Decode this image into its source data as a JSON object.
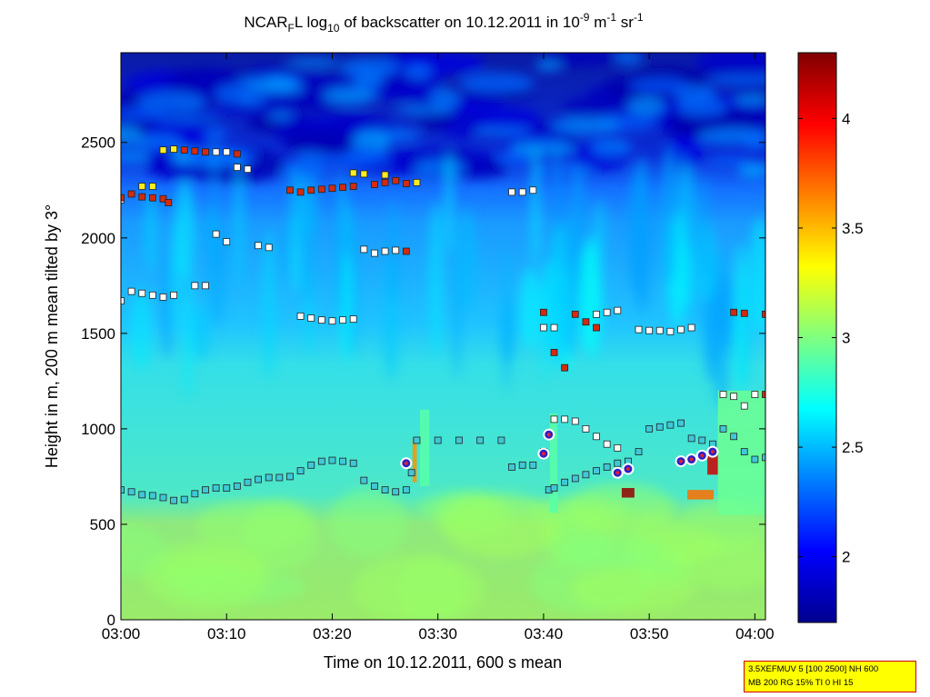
{
  "chart_data": {
    "type": "heatmap",
    "title": {
      "prefix": "NCAR",
      "prefix_sub": "F",
      "mid": "L log",
      "mid_sub": "10",
      "rest": " of backscatter on 10.12.2011 in 10",
      "exp1": "-9",
      "unit1": " m",
      "exp2": "-1",
      "unit2": " sr",
      "exp3": "-1"
    },
    "xlabel": "Time on 10.12.2011, 600 s mean",
    "ylabel": "Height in m, 200 m mean tilted by 3°",
    "xlim_minutes": [
      0,
      61
    ],
    "xticks": [
      {
        "minute": 0,
        "label": "03:00"
      },
      {
        "minute": 10,
        "label": "03:10"
      },
      {
        "minute": 20,
        "label": "03:20"
      },
      {
        "minute": 30,
        "label": "03:30"
      },
      {
        "minute": 40,
        "label": "03:40"
      },
      {
        "minute": 50,
        "label": "03:50"
      },
      {
        "minute": 60,
        "label": "04:00"
      }
    ],
    "ylim": [
      0,
      2970
    ],
    "yticks": [
      {
        "value": 0,
        "label": "0"
      },
      {
        "value": 500,
        "label": "500"
      },
      {
        "value": 1000,
        "label": "1000"
      },
      {
        "value": 1500,
        "label": "1500"
      },
      {
        "value": 2000,
        "label": "2000"
      },
      {
        "value": 2500,
        "label": "2500"
      }
    ],
    "colorbar": {
      "range": [
        1.7,
        4.3
      ],
      "ticks": [
        {
          "value": 2,
          "label": "2"
        },
        {
          "value": 2.5,
          "label": "2.5"
        },
        {
          "value": 3,
          "label": "3"
        },
        {
          "value": 3.5,
          "label": "3.5"
        },
        {
          "value": 4,
          "label": "4"
        }
      ],
      "colormap": "jet"
    },
    "layers": [
      {
        "name": "surface",
        "from": 0,
        "to": 600,
        "value": 2.95
      },
      {
        "name": "mixed",
        "from": 600,
        "to": 1500,
        "value": 2.8
      },
      {
        "name": "upper",
        "from": 1500,
        "to": 2200,
        "value": 2.55
      },
      {
        "name": "clean",
        "from": 2200,
        "to": 2970,
        "value": 1.95
      }
    ],
    "markers": {
      "lower_layer": {
        "color": "#40c8d8",
        "points": [
          [
            0,
            680
          ],
          [
            1,
            670
          ],
          [
            2,
            655
          ],
          [
            3,
            650
          ],
          [
            4,
            640
          ],
          [
            5,
            625
          ],
          [
            6,
            630
          ],
          [
            7,
            660
          ],
          [
            8,
            680
          ],
          [
            9,
            690
          ],
          [
            10,
            690
          ],
          [
            11,
            700
          ],
          [
            12,
            720
          ],
          [
            13,
            735
          ],
          [
            14,
            745
          ],
          [
            15,
            745
          ],
          [
            16,
            750
          ],
          [
            17,
            780
          ],
          [
            18,
            810
          ],
          [
            19,
            830
          ],
          [
            20,
            835
          ],
          [
            21,
            830
          ],
          [
            22,
            820
          ],
          [
            23,
            730
          ],
          [
            24,
            700
          ],
          [
            25,
            680
          ],
          [
            26,
            670
          ],
          [
            27,
            680
          ],
          [
            27.5,
            770
          ],
          [
            28,
            940
          ],
          [
            30,
            940
          ],
          [
            32,
            940
          ],
          [
            34,
            940
          ],
          [
            36,
            940
          ],
          [
            37,
            800
          ],
          [
            38,
            810
          ],
          [
            39,
            810
          ],
          [
            40,
            880
          ],
          [
            40.5,
            680
          ],
          [
            41,
            690
          ],
          [
            42,
            720
          ],
          [
            43,
            740
          ],
          [
            44,
            760
          ],
          [
            45,
            780
          ],
          [
            46,
            800
          ],
          [
            47,
            820
          ],
          [
            48,
            830
          ],
          [
            49,
            880
          ],
          [
            50,
            1000
          ],
          [
            51,
            1010
          ],
          [
            52,
            1020
          ],
          [
            53,
            1030
          ],
          [
            54,
            950
          ],
          [
            55,
            940
          ],
          [
            56,
            920
          ],
          [
            57,
            1000
          ],
          [
            58,
            960
          ],
          [
            59,
            880
          ],
          [
            60,
            840
          ],
          [
            61,
            850
          ]
        ]
      },
      "upper_layer": {
        "color": "#ffffff",
        "points": [
          [
            0,
            2200
          ],
          [
            0,
            1670
          ],
          [
            1,
            1720
          ],
          [
            2,
            1710
          ],
          [
            3,
            1700
          ],
          [
            4,
            1690
          ],
          [
            5,
            1700
          ],
          [
            7,
            1750
          ],
          [
            8,
            1750
          ],
          [
            9,
            2450
          ],
          [
            10,
            2450
          ],
          [
            11,
            2370
          ],
          [
            12,
            2360
          ],
          [
            9,
            2020
          ],
          [
            10,
            1980
          ],
          [
            13,
            1960
          ],
          [
            14,
            1950
          ],
          [
            17,
            1590
          ],
          [
            18,
            1580
          ],
          [
            19,
            1570
          ],
          [
            20,
            1565
          ],
          [
            21,
            1570
          ],
          [
            22,
            1575
          ],
          [
            23,
            1940
          ],
          [
            24,
            1920
          ],
          [
            25,
            1930
          ],
          [
            26,
            1935
          ],
          [
            37,
            2240
          ],
          [
            38,
            2240
          ],
          [
            39,
            2250
          ],
          [
            40,
            1530
          ],
          [
            41,
            1530
          ],
          [
            45,
            1600
          ],
          [
            46,
            1610
          ],
          [
            47,
            1620
          ],
          [
            49,
            1520
          ],
          [
            50,
            1515
          ],
          [
            51,
            1515
          ],
          [
            52,
            1510
          ],
          [
            53,
            1520
          ],
          [
            54,
            1530
          ],
          [
            57,
            1180
          ],
          [
            58,
            1170
          ],
          [
            59,
            1120
          ],
          [
            60,
            1180
          ],
          [
            41,
            1050
          ],
          [
            42,
            1050
          ],
          [
            43,
            1040
          ],
          [
            44,
            1000
          ],
          [
            45,
            960
          ],
          [
            46,
            920
          ],
          [
            47,
            900
          ]
        ]
      },
      "red_layer": {
        "color": "#d42a10",
        "points": [
          [
            0,
            2210
          ],
          [
            1,
            2230
          ],
          [
            2,
            2215
          ],
          [
            3,
            2210
          ],
          [
            4,
            2205
          ],
          [
            4.5,
            2185
          ],
          [
            6,
            2460
          ],
          [
            7,
            2455
          ],
          [
            8,
            2450
          ],
          [
            11,
            2440
          ],
          [
            16,
            2250
          ],
          [
            17,
            2240
          ],
          [
            18,
            2250
          ],
          [
            19,
            2255
          ],
          [
            20,
            2260
          ],
          [
            21,
            2265
          ],
          [
            22,
            2270
          ],
          [
            24,
            2280
          ],
          [
            25,
            2290
          ],
          [
            26,
            2300
          ],
          [
            27,
            2285
          ],
          [
            27,
            1930
          ],
          [
            40,
            1610
          ],
          [
            41,
            1400
          ],
          [
            42,
            1320
          ],
          [
            43,
            1600
          ],
          [
            44,
            1560
          ],
          [
            45,
            1530
          ],
          [
            58,
            1610
          ],
          [
            59,
            1605
          ],
          [
            61,
            1600
          ],
          [
            61,
            1180
          ]
        ]
      },
      "yellow_layer": {
        "color": "#ffee20",
        "points": [
          [
            2,
            2270
          ],
          [
            3,
            2270
          ],
          [
            4,
            2460
          ],
          [
            5,
            2465
          ],
          [
            22,
            2340
          ],
          [
            23,
            2335
          ],
          [
            25,
            2330
          ],
          [
            28,
            2290
          ]
        ]
      },
      "aerosol_spots": {
        "color": "#e02030",
        "points": [
          [
            27,
            820
          ],
          [
            40.5,
            970
          ],
          [
            40,
            870
          ],
          [
            47,
            770
          ],
          [
            48,
            790
          ],
          [
            53,
            830
          ],
          [
            54,
            840
          ],
          [
            55,
            860
          ],
          [
            56,
            880
          ]
        ]
      }
    }
  },
  "info_box": {
    "line1": "3.5XEFMUV 5 [100 2500] NH 600",
    "line2": "MB 200 RG 15% TI 0 HI 15"
  }
}
